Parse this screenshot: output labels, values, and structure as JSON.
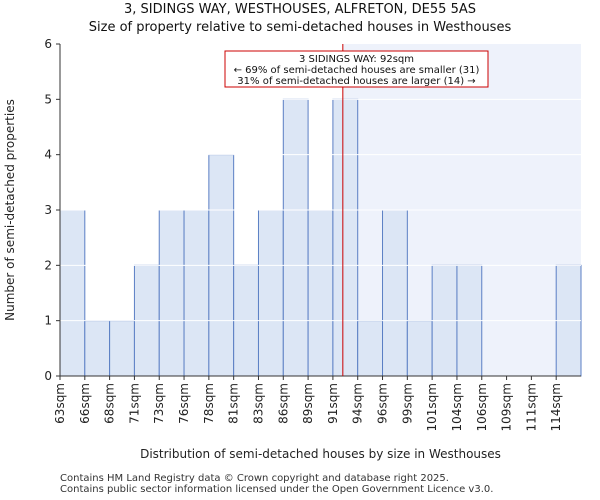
{
  "title_line1": "3, SIDINGS WAY, WESTHOUSES, ALFRETON, DE55 5AS",
  "title_line2": "Size of property relative to semi-detached houses in Westhouses",
  "footer_line1": "Contains HM Land Registry data © Crown copyright and database right 2025.",
  "footer_line2": "Contains public sector information licensed under the Open Government Licence v3.0.",
  "colors": {
    "bar_fill": "#dce6f5",
    "bar_stroke": "#5b7fc4",
    "highlight_bg": "#eef2fb",
    "marker": "#cc0000",
    "grid": "#ffffff"
  },
  "chart_data": {
    "type": "bar",
    "title": "Size of property relative to semi-detached houses in Westhouses",
    "xlabel": "Distribution of semi-detached houses by size in Westhouses",
    "ylabel": "Number of semi-detached properties",
    "categories": [
      "63sqm",
      "66sqm",
      "68sqm",
      "71sqm",
      "73sqm",
      "76sqm",
      "78sqm",
      "81sqm",
      "83sqm",
      "86sqm",
      "89sqm",
      "91sqm",
      "94sqm",
      "96sqm",
      "99sqm",
      "101sqm",
      "104sqm",
      "106sqm",
      "109sqm",
      "111sqm",
      "114sqm"
    ],
    "values": [
      3,
      1,
      1,
      2,
      3,
      3,
      4,
      2,
      3,
      5,
      3,
      5,
      1,
      3,
      1,
      2,
      2,
      0,
      0,
      0,
      2
    ],
    "ylim": [
      0,
      6
    ],
    "yticks": [
      0,
      1,
      2,
      3,
      4,
      5,
      6
    ],
    "marker_value_sqm": 92,
    "marker_bin_index": 11,
    "marker_fraction_in_bin": 0.4,
    "annotation": {
      "line1": "3 SIDINGS WAY: 92sqm",
      "line2": "← 69% of semi-detached houses are smaller (31)",
      "line3": "31% of semi-detached houses are larger (14) →"
    }
  }
}
